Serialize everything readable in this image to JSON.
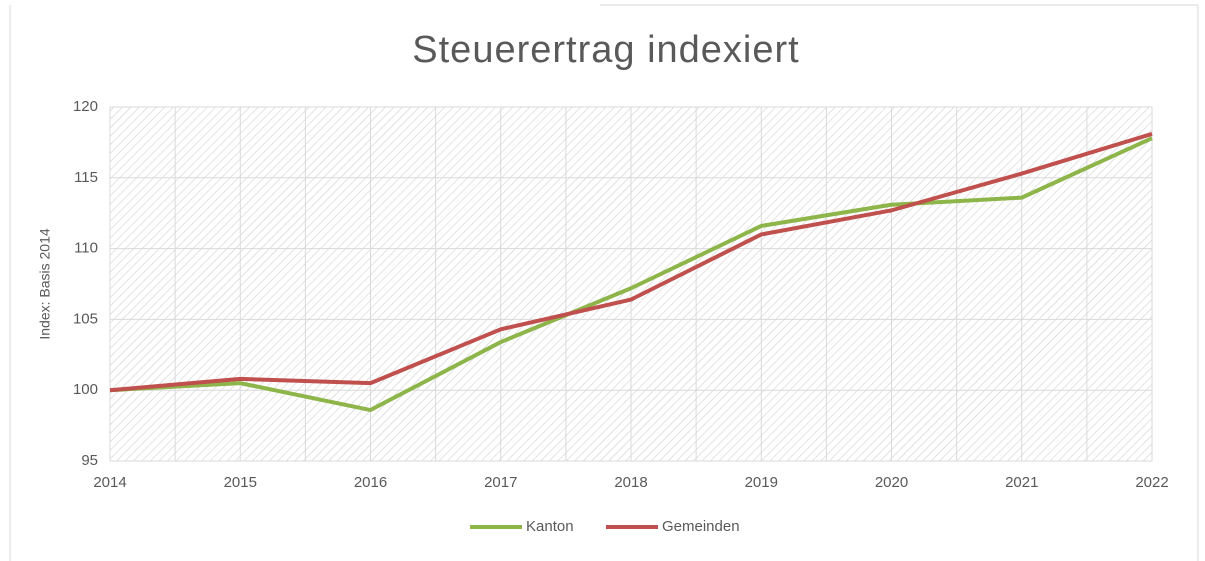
{
  "chart_data": {
    "type": "line",
    "title": "Steuerertrag indexiert",
    "y_label": "Index: Basis 2014",
    "x": [
      2014,
      2015,
      2016,
      2017,
      2018,
      2019,
      2020,
      2021,
      2022
    ],
    "xlim": [
      2014,
      2022
    ],
    "xticks": [
      2014,
      2015,
      2016,
      2017,
      2018,
      2019,
      2020,
      2021,
      2022
    ],
    "ylim": [
      95,
      120
    ],
    "yticks": [
      95,
      100,
      105,
      110,
      115,
      120
    ],
    "grid": true,
    "legend": "bottom",
    "series": [
      {
        "name": "Kanton",
        "color": "#8db54a",
        "values": [
          100,
          100.5,
          98.6,
          103.4,
          107.2,
          111.6,
          113.1,
          113.6,
          117.8
        ]
      },
      {
        "name": "Gemeinden",
        "color": "#c0504d",
        "values": [
          100,
          100.8,
          100.5,
          104.3,
          106.4,
          111.0,
          112.7,
          115.3,
          118.1
        ]
      }
    ]
  }
}
